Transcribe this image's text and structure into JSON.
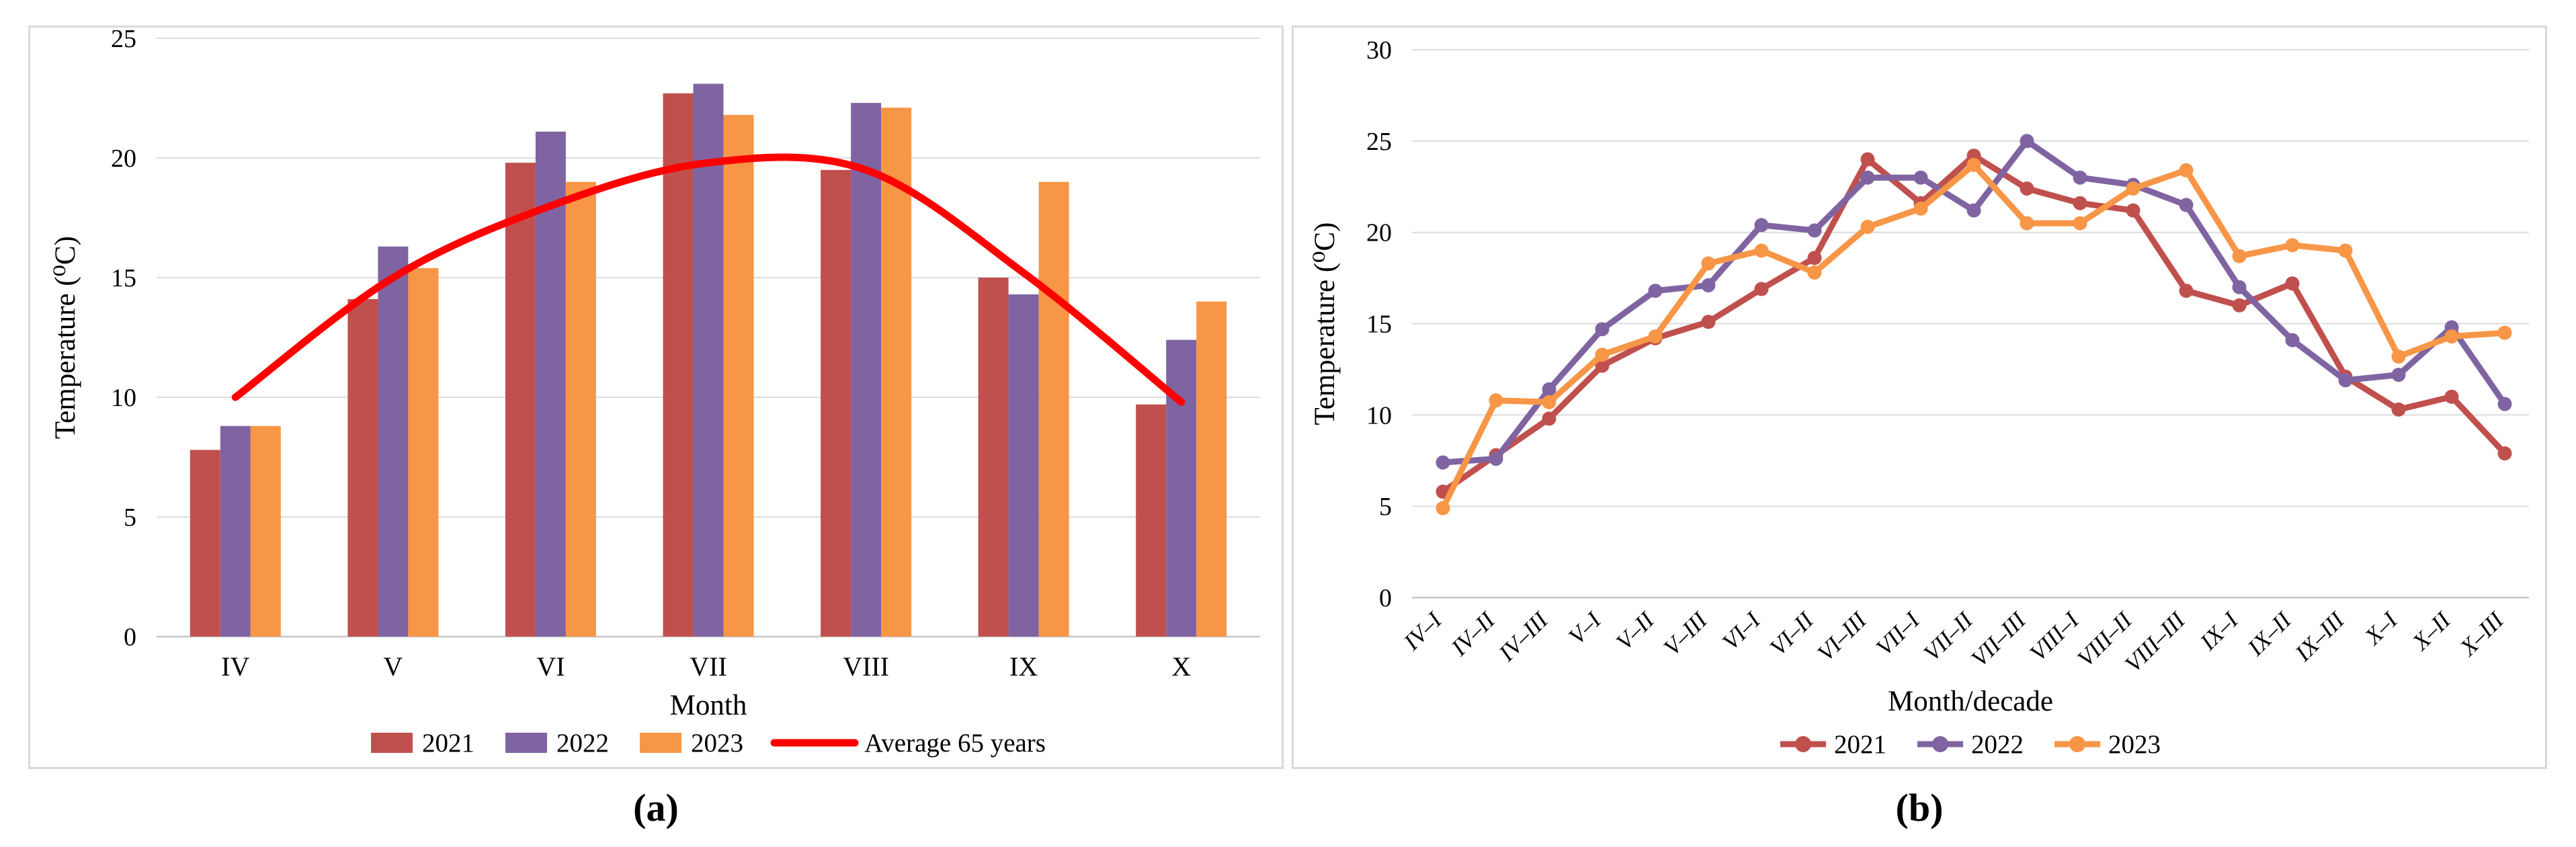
{
  "captions": {
    "a": "(a)",
    "b": "(b)"
  },
  "colors": {
    "series_2021": "#C0504D",
    "series_2022": "#8064A2",
    "series_2023": "#F79646",
    "average_line": "#FF0000",
    "gridline": "#DCDCDE",
    "axis_line": "#C6C6C8",
    "panel_border": "#D9D9D9",
    "text": "#000000",
    "background": "#FFFFFF"
  },
  "chart_data": [
    {
      "type": "bar",
      "panel": "a",
      "title": "",
      "categories": [
        "IV",
        "V",
        "VI",
        "VII",
        "VIII",
        "IX",
        "X"
      ],
      "series": [
        {
          "name": "2021",
          "color": "#C0504D",
          "values": [
            7.8,
            14.1,
            19.8,
            22.7,
            19.5,
            15.0,
            9.7
          ]
        },
        {
          "name": "2022",
          "color": "#8064A2",
          "values": [
            8.8,
            16.3,
            21.1,
            23.1,
            22.3,
            14.3,
            12.4
          ]
        },
        {
          "name": "2023",
          "color": "#F79646",
          "values": [
            8.8,
            15.4,
            19.0,
            21.8,
            22.1,
            19.0,
            14.0
          ]
        }
      ],
      "overlay_line": {
        "name": "Average 65 years",
        "color": "#FF0000",
        "values": [
          10.0,
          15.0,
          18.0,
          19.8,
          19.5,
          15.2,
          9.8
        ]
      },
      "xlabel": "Month",
      "ylabel": "Temperature (⁰C)",
      "ylim": [
        0,
        25
      ],
      "ytick_step": 5,
      "grid": true,
      "legend_position": "bottom"
    },
    {
      "type": "line",
      "panel": "b",
      "title": "",
      "categories": [
        "IV–I",
        "IV–II",
        "IV–III",
        "V–I",
        "V–II",
        "V–III",
        "VI–I",
        "VI–II",
        "VI–III",
        "VII–I",
        "VII–II",
        "VII–III",
        "VIII–I",
        "VIII–II",
        "VIII–III",
        "IX–I",
        "IX–II",
        "IX–III",
        "X–I",
        "X–II",
        "X–III"
      ],
      "series": [
        {
          "name": "2021",
          "color": "#C0504D",
          "values": [
            5.8,
            7.8,
            9.8,
            12.7,
            14.2,
            15.1,
            16.9,
            18.6,
            24.0,
            21.6,
            24.2,
            22.4,
            21.6,
            21.2,
            16.8,
            16.0,
            17.2,
            12.1,
            10.3,
            11.0,
            7.9
          ]
        },
        {
          "name": "2022",
          "color": "#8064A2",
          "values": [
            7.4,
            7.6,
            11.4,
            14.7,
            16.8,
            17.1,
            20.4,
            20.1,
            23.0,
            23.0,
            21.2,
            25.0,
            23.0,
            22.6,
            21.5,
            17.0,
            14.1,
            11.9,
            12.2,
            14.8,
            10.6
          ]
        },
        {
          "name": "2023",
          "color": "#F79646",
          "values": [
            4.9,
            10.8,
            10.7,
            13.3,
            14.3,
            18.3,
            19.0,
            17.8,
            20.3,
            21.3,
            23.7,
            20.5,
            20.5,
            22.4,
            23.4,
            18.7,
            19.3,
            19.0,
            13.2,
            14.3,
            14.5
          ]
        }
      ],
      "xlabel": "Month/decade",
      "ylabel": "Temperature (⁰C)",
      "ylim": [
        0,
        30
      ],
      "ytick_step": 5,
      "grid": true,
      "legend_position": "bottom"
    }
  ]
}
